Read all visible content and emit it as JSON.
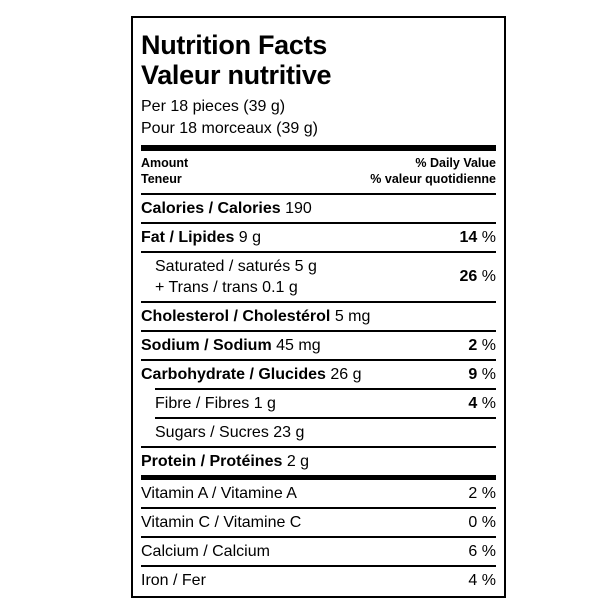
{
  "title_en": "Nutrition Facts",
  "title_fr": "Valeur nutritive",
  "serving_en": "Per 18 pieces (39 g)",
  "serving_fr": "Pour 18 morceaux (39 g)",
  "header": {
    "amount": "Amount",
    "teneur": "Teneur",
    "dv_en": "% Daily Value",
    "dv_fr": "% valeur quotidienne"
  },
  "calories": {
    "label": "Calories / Calories",
    "value": "190"
  },
  "nutrients": {
    "fat": {
      "label": "Fat / Lipides",
      "amount": "9 g",
      "pct": "14",
      "unit": "%"
    },
    "saturated": {
      "label": "Saturated / saturés",
      "amount": "5 g",
      "trans_label": "+ Trans / trans",
      "trans_amount": "0.1 g",
      "pct": "26",
      "unit": "%"
    },
    "cholesterol": {
      "label": "Cholesterol / Cholestérol",
      "amount": "5 mg"
    },
    "sodium": {
      "label": "Sodium / Sodium",
      "amount": "45 mg",
      "pct": "2",
      "unit": "%"
    },
    "carbohydrate": {
      "label": "Carbohydrate / Glucides",
      "amount": "26 g",
      "pct": "9",
      "unit": "%"
    },
    "fibre": {
      "label": "Fibre / Fibres",
      "amount": "1 g",
      "pct": "4",
      "unit": "%"
    },
    "sugars": {
      "label": "Sugars / Sucres",
      "amount": "23 g"
    },
    "protein": {
      "label": "Protein / Protéines",
      "amount": "2 g"
    }
  },
  "vitamins": [
    {
      "label": "Vitamin A / Vitamine A",
      "pct": "2 %"
    },
    {
      "label": "Vitamin C / Vitamine C",
      "pct": "0 %"
    },
    {
      "label": "Calcium / Calcium",
      "pct": "6 %"
    },
    {
      "label": "Iron / Fer",
      "pct": "4 %"
    }
  ]
}
